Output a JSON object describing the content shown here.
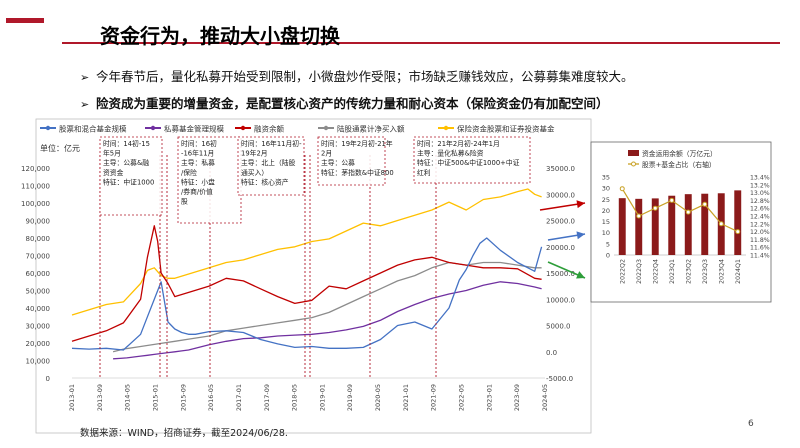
{
  "page": {
    "title": "资金行为，推动大小盘切换",
    "bullets": [
      "今年春节后，量化私募开始受到限制，小微盘炒作受限；市场缺乏赚钱效应，公募募集难度较大。",
      "险资成为重要的增量资金，是配置核心资产的传统力量和耐心资本（保险资金仍有加配空间）"
    ],
    "source": "数据来源：WIND，招商证券，截至2024/06/28.",
    "page_number": "6"
  },
  "colors": {
    "accent": "#b0182a",
    "blue": "#4472c4",
    "purple": "#7030a0",
    "darkred": "#c00000",
    "gray": "#8c8c8c",
    "yellow": "#ffc000",
    "bar": "#8b1a1a",
    "ratio": "#c9a227",
    "arrow_red": "#c00000",
    "arrow_green": "#2e9e3a",
    "arrow_blue": "#4472c4"
  },
  "chart_data": [
    {
      "type": "line",
      "legend": [
        "股票和混合基金规模",
        "私募基金管理规模",
        "融资余额",
        "陆股通累计净买入额",
        "保险资金股票和证券投资基金"
      ],
      "unit_label": "单位：亿元",
      "x_ticks": [
        "2013-01",
        "2013-09",
        "2014-05",
        "2015-01",
        "2015-09",
        "2016-05",
        "2017-01",
        "2017-09",
        "2018-05",
        "2019-01",
        "2019-09",
        "2020-05",
        "2021-01",
        "2021-09",
        "2022-05",
        "2023-01",
        "2023-09",
        "2024-05"
      ],
      "y_left_ticks": [
        0,
        10000,
        20000,
        30000,
        40000,
        50000,
        60000,
        70000,
        80000,
        90000,
        100000,
        110000,
        120000
      ],
      "y_left_tick_labels": [
        "0",
        "10,000",
        "20,000",
        "30,000",
        "40,000",
        "50,000",
        "60,000",
        "70,000",
        "80,000",
        "90,000",
        "100,000",
        "110,000",
        "120,000"
      ],
      "y_right_ticks": [
        -5000,
        0,
        5000,
        10000,
        15000,
        20000,
        25000,
        30000,
        35000
      ],
      "y_right_tick_labels": [
        "-5000.0",
        "0.0",
        "5000.0",
        "10000.0",
        "15000.0",
        "20000.0",
        "25000.0",
        "30000.0",
        "35000.0"
      ],
      "series": [
        {
          "name": "股票和混合基金规模",
          "x": [
            0,
            5,
            10,
            15,
            20,
            22,
            24,
            26,
            28,
            30,
            32,
            34,
            36,
            40,
            45,
            50,
            55,
            60,
            65,
            70,
            75,
            80,
            85,
            90,
            95,
            100,
            105,
            110,
            113,
            115,
            117,
            119,
            121,
            125,
            130,
            135,
            137
          ],
          "values": [
            17000,
            16500,
            17000,
            16000,
            25000,
            35000,
            45000,
            55000,
            32000,
            28000,
            26000,
            25000,
            25000,
            26500,
            27000,
            26000,
            22000,
            19500,
            17500,
            18000,
            17000,
            17000,
            17500,
            22000,
            30000,
            32000,
            28000,
            40000,
            56000,
            62000,
            70000,
            77000,
            80000,
            73000,
            66000,
            61000,
            75000
          ]
        },
        {
          "name": "私募基金管理规模",
          "x": [
            12,
            14,
            16,
            18,
            20,
            22,
            24,
            26,
            28,
            30,
            32,
            34,
            36,
            40,
            45,
            50,
            55,
            60,
            65,
            70,
            75,
            80,
            85,
            90,
            95,
            100,
            105,
            110,
            115,
            120,
            125,
            130,
            135,
            137
          ],
          "values": [
            11000,
            11200,
            11500,
            12000,
            12500,
            13000,
            13500,
            14000,
            14500,
            15000,
            15500,
            16000,
            17000,
            19000,
            21000,
            22500,
            23000,
            24000,
            24500,
            25000,
            26000,
            27500,
            29500,
            33000,
            38000,
            42000,
            45500,
            48000,
            50000,
            53000,
            55000,
            54000,
            52000,
            51000
          ]
        },
        {
          "name": "融资余额",
          "x": [
            0,
            5,
            10,
            15,
            20,
            22,
            24,
            25,
            26,
            28,
            30,
            35,
            40,
            45,
            50,
            55,
            60,
            65,
            70,
            75,
            80,
            85,
            90,
            95,
            100,
            105,
            110,
            115,
            120,
            125,
            130,
            135,
            137
          ],
          "values": [
            2000,
            3000,
            4000,
            5500,
            10000,
            18000,
            24000,
            21000,
            15000,
            13000,
            10500,
            11500,
            12500,
            14000,
            13500,
            12000,
            10500,
            9200,
            9800,
            12500,
            12000,
            13500,
            15000,
            16500,
            17500,
            18000,
            17000,
            16500,
            16000,
            16000,
            15800,
            14000,
            13800
          ]
        },
        {
          "name": "陆股通累计净买入额",
          "x": [
            12,
            15,
            20,
            25,
            30,
            35,
            40,
            45,
            50,
            55,
            60,
            65,
            70,
            75,
            80,
            85,
            90,
            95,
            100,
            105,
            110,
            115,
            120,
            125,
            130,
            135,
            137
          ],
          "values": [
            0,
            500,
            1000,
            1500,
            2000,
            2500,
            3000,
            4000,
            4500,
            5000,
            5500,
            6000,
            6500,
            7500,
            9000,
            10500,
            12000,
            13500,
            14500,
            16000,
            17000,
            16500,
            17000,
            17000,
            16500,
            16000,
            16000
          ]
        },
        {
          "name": "保险资金股票和证券投资基金",
          "x": [
            0,
            5,
            10,
            15,
            20,
            22,
            24,
            26,
            28,
            30,
            35,
            40,
            45,
            50,
            55,
            60,
            65,
            70,
            75,
            80,
            85,
            90,
            95,
            100,
            105,
            110,
            115,
            120,
            125,
            130,
            133,
            135,
            137
          ],
          "values": [
            7000,
            8000,
            9000,
            9500,
            13000,
            15500,
            16000,
            14500,
            14000,
            14000,
            15000,
            16000,
            17000,
            17500,
            18500,
            19500,
            20000,
            21000,
            21500,
            23000,
            24500,
            24000,
            25000,
            26000,
            27000,
            28500,
            27000,
            29000,
            29500,
            30500,
            31000,
            30000,
            29500
          ]
        }
      ]
    },
    {
      "type": "bar",
      "categories": [
        "2022Q2",
        "2022Q3",
        "2022Q4",
        "2023Q1",
        "2023Q2",
        "2023Q3",
        "2023Q4",
        "2024Q1"
      ],
      "series": [
        {
          "name": "资金运用余额（万亿元）",
          "values": [
            25.5,
            25.2,
            25.4,
            26.6,
            27.3,
            27.5,
            27.7,
            29.0
          ],
          "axis": "left"
        },
        {
          "name": "股票+基金占比（右轴）",
          "values": [
            13.1,
            12.4,
            12.6,
            12.8,
            12.5,
            12.7,
            12.2,
            12.0
          ],
          "axis": "right"
        }
      ],
      "y_left_ticks": [
        0,
        5,
        10,
        15,
        20,
        25,
        30,
        35
      ],
      "y_right_ticks": [
        "11.4%",
        "11.6%",
        "11.8%",
        "12.0%",
        "12.2%",
        "12.4%",
        "12.6%",
        "12.8%",
        "13.0%",
        "13.2%",
        "13.4%"
      ],
      "ylim_left": [
        0,
        35
      ],
      "ylim_right": [
        11.4,
        13.4
      ]
    }
  ],
  "annotations": [
    {
      "lines": [
        "时间：14初-15",
        "年5月",
        "主导：公募&融",
        "资资金",
        "特征：中证1000"
      ]
    },
    {
      "lines": [
        "时间：16初",
        "-16年11月",
        "主导：私募",
        "/保险",
        "特征：小盘",
        "/券商/价值",
        "股"
      ]
    },
    {
      "lines": [
        "时间：16年11月初-",
        "19年2月",
        "主导：北上（陆股",
        "通买入）",
        "特征：核心资产"
      ]
    },
    {
      "lines": [
        "时间：19年2月初-21年",
        "2月",
        "主导：公募",
        "特征：茅指数&中证800"
      ]
    },
    {
      "lines": [
        "时间：21年2月初-24年1月",
        "主导：量化私募&险资",
        "特征：中证500&中证1000+中证",
        "红利"
      ]
    }
  ]
}
